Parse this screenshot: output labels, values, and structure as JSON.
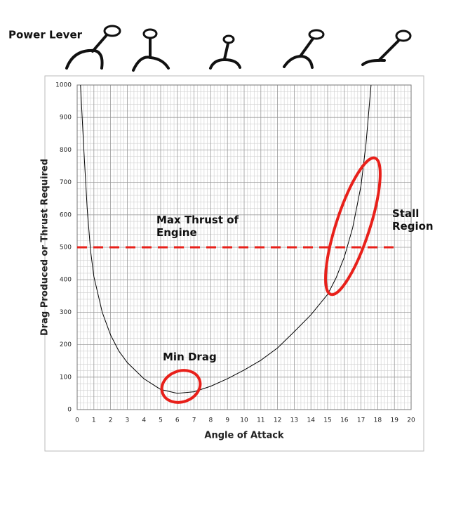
{
  "chart_data": {
    "type": "line",
    "header_label": "Power Lever",
    "xlabel": "Angle of Attack",
    "ylabel": "Drag Produced or Thrust Required",
    "x": [
      0.2,
      0.4,
      0.6,
      0.8,
      1,
      1.5,
      2,
      2.5,
      3,
      4,
      5,
      6,
      7,
      8,
      9,
      10,
      11,
      12,
      13,
      14,
      15,
      15.5,
      16,
      16.5,
      17,
      17.3,
      17.6
    ],
    "series": [
      {
        "color": "#000000",
        "values": [
          1000,
          800,
          620,
          490,
          410,
          300,
          230,
          180,
          145,
          95,
          62,
          50,
          55,
          72,
          95,
          122,
          152,
          190,
          240,
          292,
          355,
          405,
          470,
          560,
          690,
          820,
          1000
        ]
      }
    ],
    "reference_line": {
      "label": "Max Thrust of Engine",
      "value": 500,
      "x": [
        0,
        19.3
      ],
      "color": "#e8201a"
    },
    "annotations": [
      "Min Drag",
      "Stall Region"
    ],
    "xlim": [
      0,
      20
    ],
    "ylim": [
      0,
      1000
    ],
    "xticks": [
      0,
      1,
      2,
      3,
      4,
      5,
      6,
      7,
      8,
      9,
      10,
      11,
      12,
      13,
      14,
      15,
      16,
      17,
      18,
      19,
      20
    ],
    "yticks": [
      0,
      100,
      200,
      300,
      400,
      500,
      600,
      700,
      800,
      900,
      1000
    ],
    "grid": true
  }
}
